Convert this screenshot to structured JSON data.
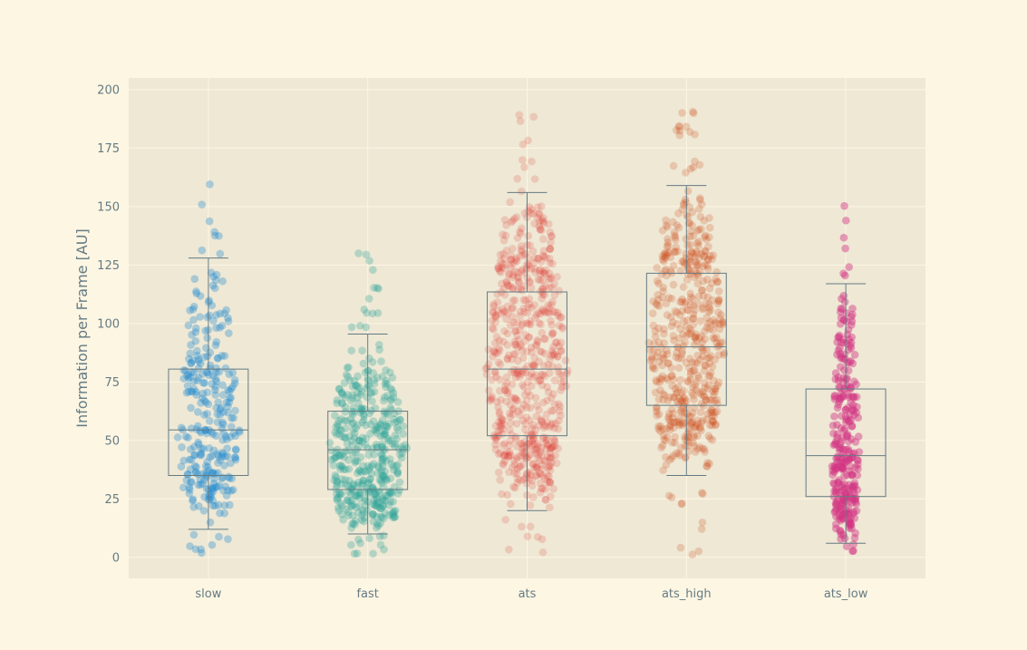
{
  "chart_data": {
    "type": "box+strip",
    "title": "",
    "xlabel": "",
    "ylabel": "Information per Frame [AU]",
    "ylim": [
      -9,
      205
    ],
    "yticks": [
      0,
      25,
      50,
      75,
      100,
      125,
      150,
      175,
      200
    ],
    "grid": true,
    "categories": [
      "slow",
      "fast",
      "ats",
      "ats_high",
      "ats_low"
    ],
    "boxes": [
      {
        "category": "slow",
        "whisker_low": 12,
        "q1": 35,
        "median": 54.5,
        "q3": 80.5,
        "whisker_high": 128
      },
      {
        "category": "fast",
        "whisker_low": 10,
        "q1": 29,
        "median": 46,
        "q3": 62.5,
        "whisker_high": 95.5
      },
      {
        "category": "ats",
        "whisker_low": 20,
        "q1": 52,
        "median": 80.5,
        "q3": 113.5,
        "whisker_high": 156
      },
      {
        "category": "ats_high",
        "whisker_low": 35,
        "q1": 65,
        "median": 90,
        "q3": 121.5,
        "whisker_high": 159
      },
      {
        "category": "ats_low",
        "whisker_low": 6,
        "q1": 26,
        "median": 43.5,
        "q3": 72,
        "whisker_high": 117
      }
    ],
    "colors": {
      "slow": "#268bd2",
      "fast": "#2aa198",
      "ats": "#dc322f",
      "ats_high": "#cb4b16",
      "ats_low": "#d33682",
      "box_line": "#657b83",
      "plot_bg": "#eee8d5",
      "page_bg": "#fdf6e3",
      "grid": "#fdf6e3"
    }
  }
}
